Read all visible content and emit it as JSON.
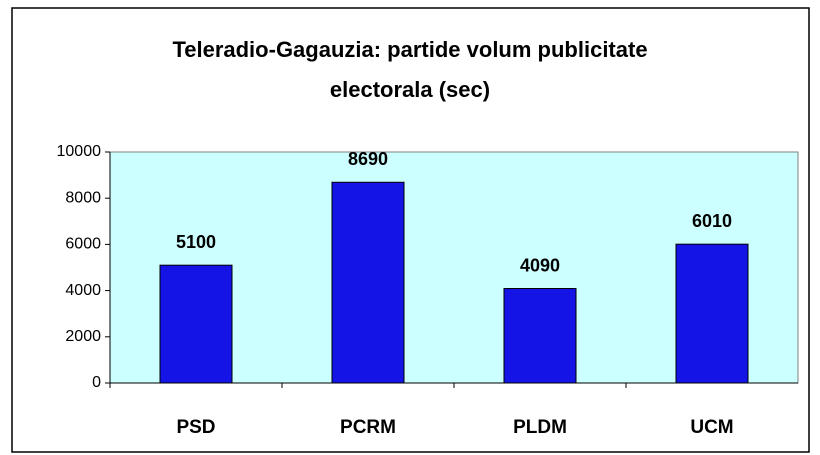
{
  "chart_data": {
    "type": "bar",
    "title": "Teleradio-Gagauzia: partide volum publicitate electorala (sec)",
    "categories": [
      "PSD",
      "PCRM",
      "PLDM",
      "UCM"
    ],
    "values": [
      5100,
      8690,
      4090,
      6010
    ],
    "color": "#1414e6",
    "ylim": [
      0,
      10000
    ],
    "yticks": [
      0,
      2000,
      4000,
      6000,
      8000,
      10000
    ],
    "grid": false,
    "plot_background": "#ccffff"
  }
}
